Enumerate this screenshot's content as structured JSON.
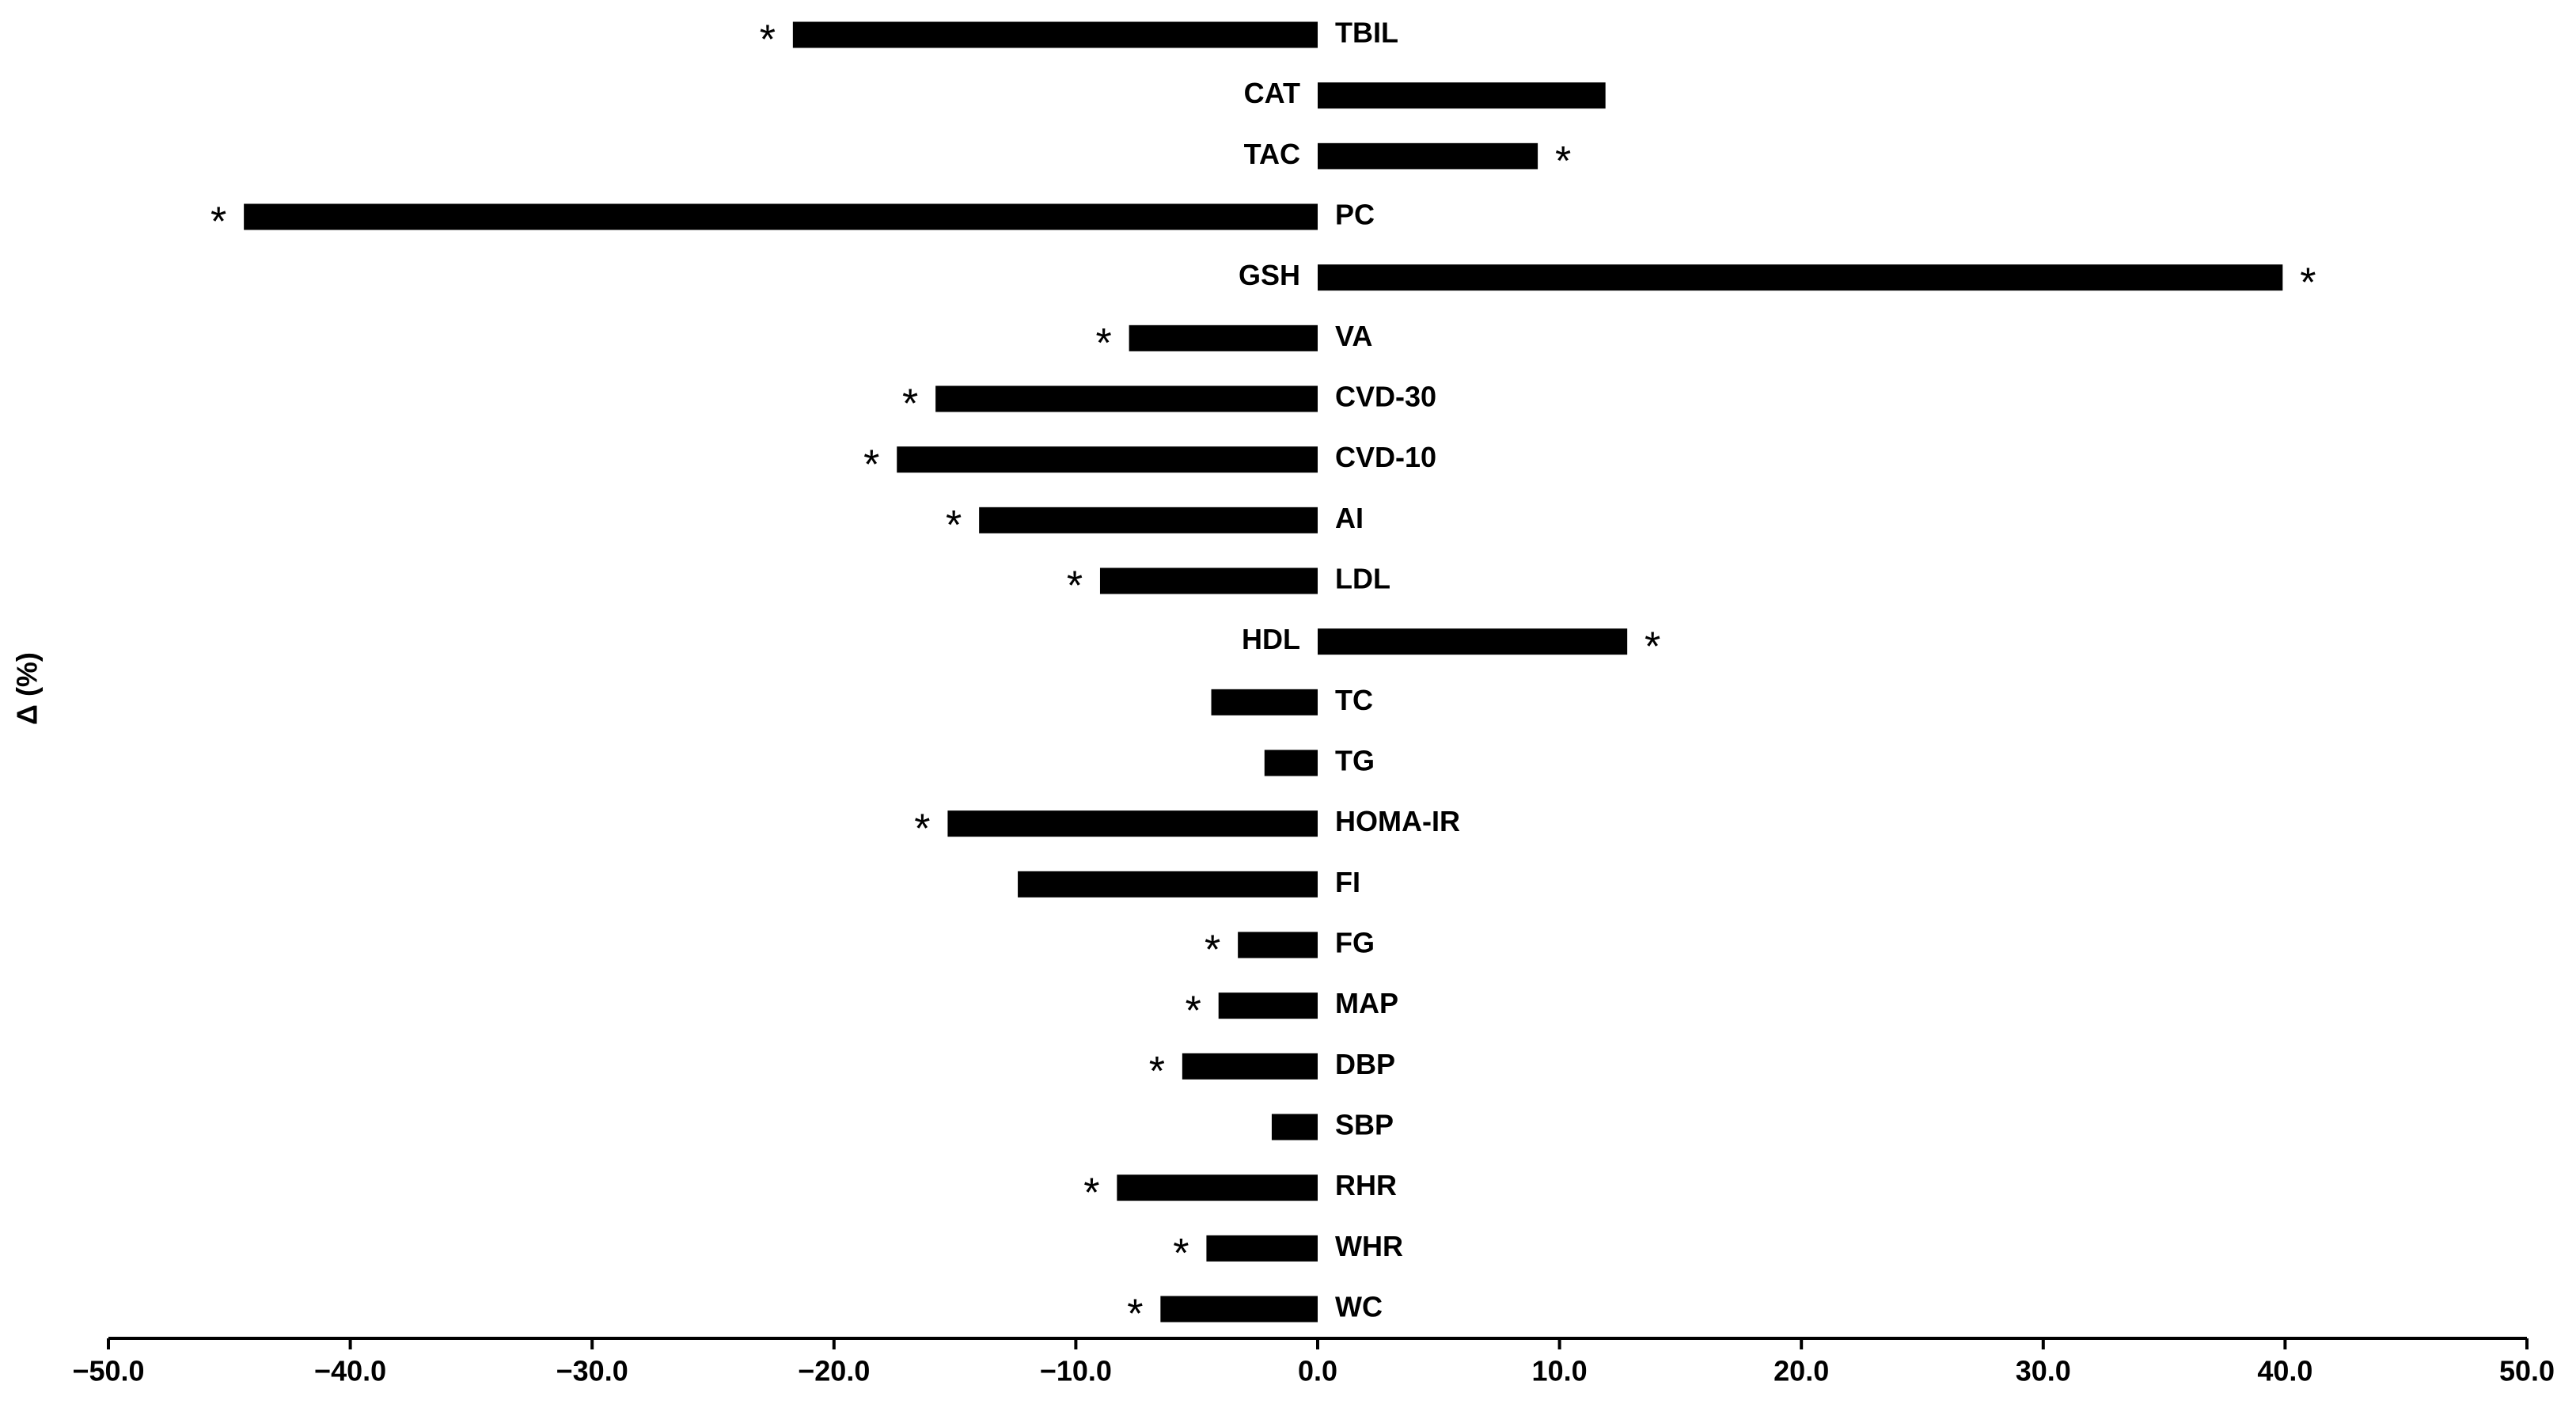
{
  "chart_data": {
    "type": "hbar",
    "y_label": "Δ (%)",
    "categories": [
      "TBIL",
      "CAT",
      "TAC",
      "PC",
      "GSH",
      "VA",
      "CVD-30",
      "CVD-10",
      "AI",
      "LDL",
      "HDL",
      "TC",
      "TG",
      "HOMA-IR",
      "FI",
      "FG",
      "MAP",
      "DBP",
      "SBP",
      "RHR",
      "WHR",
      "WC"
    ],
    "values": [
      -21.7,
      11.9,
      9.1,
      -44.4,
      39.9,
      -7.8,
      -15.8,
      -17.4,
      -14.0,
      -9.0,
      12.8,
      -4.4,
      -2.2,
      -15.3,
      -12.4,
      -3.3,
      -4.1,
      -5.6,
      -1.9,
      -8.3,
      -4.6,
      -6.5
    ],
    "significance": [
      "*",
      null,
      "*",
      "*",
      "*",
      "*",
      "*",
      "*",
      "*",
      "*",
      "*",
      null,
      null,
      "*",
      null,
      "*",
      "*",
      "*",
      null,
      "*",
      "*",
      "*"
    ],
    "color": "#000000",
    "xlim": [
      -50,
      50
    ],
    "xticks": [
      {
        "value": -50,
        "label": "−50.0"
      },
      {
        "value": -40,
        "label": "−40.0"
      },
      {
        "value": -30,
        "label": "−30.0"
      },
      {
        "value": -20,
        "label": "−20.0"
      },
      {
        "value": -10,
        "label": "−10.0"
      },
      {
        "value": 0,
        "label": "0.0"
      },
      {
        "value": 10,
        "label": "10.0"
      },
      {
        "value": 20,
        "label": "20.0"
      },
      {
        "value": 30,
        "label": "30.0"
      },
      {
        "value": 40,
        "label": "40.0"
      },
      {
        "value": 50,
        "label": "50.0"
      }
    ],
    "grid": false
  }
}
